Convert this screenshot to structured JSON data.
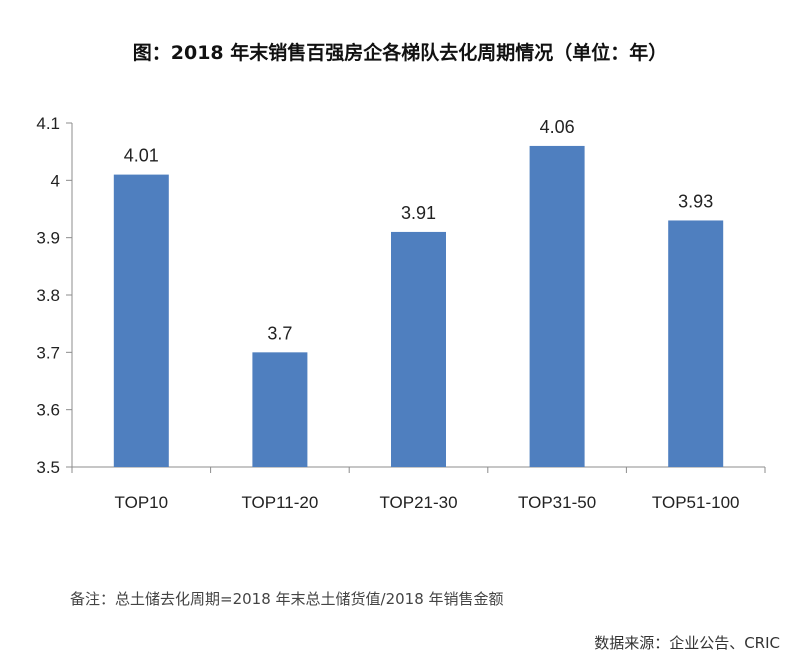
{
  "title": "图：2018 年末销售百强房企各梯队去化周期情况（单位：年）",
  "chart_data": {
    "type": "bar",
    "categories": [
      "TOP10",
      "TOP11-20",
      "TOP21-30",
      "TOP31-50",
      "TOP51-100"
    ],
    "values": [
      4.01,
      3.7,
      3.91,
      4.06,
      3.93
    ],
    "value_labels": [
      "4.01",
      "3.7",
      "3.91",
      "4.06",
      "3.93"
    ],
    "ylim": [
      3.5,
      4.1
    ],
    "yticks": [
      "3.5",
      "3.6",
      "3.7",
      "3.8",
      "3.9",
      "4",
      "4.1"
    ],
    "bar_color": "#4f7fbf",
    "xlabel": "",
    "ylabel": "",
    "grid": false,
    "legend": "none"
  },
  "footnote": "备注：总土储去化周期=2018 年末总土储货值/2018 年销售金额",
  "source": "数据来源：企业公告、CRIC"
}
